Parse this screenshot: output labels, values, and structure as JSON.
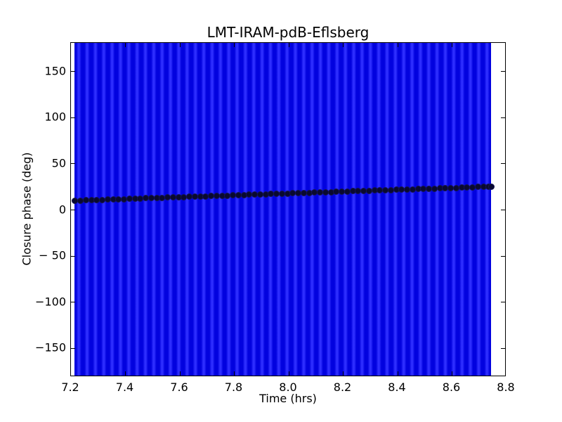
{
  "figure": {
    "background": "#ffffff"
  },
  "chart_data": {
    "type": "scatter",
    "title": "LMT-IRAM-pdB-Eflsberg",
    "xlabel": "Time (hrs)",
    "ylabel": "Closure phase (deg)",
    "xlim": [
      7.2,
      8.8
    ],
    "ylim": [
      -181,
      181
    ],
    "x_ticks": [
      7.2,
      7.4,
      7.6,
      7.8,
      8.0,
      8.2,
      8.4,
      8.6,
      8.8
    ],
    "x_tick_labels": [
      "7.2",
      "7.4",
      "7.6",
      "7.8",
      "8.0",
      "8.2",
      "8.4",
      "8.6",
      "8.8"
    ],
    "y_ticks": [
      150,
      100,
      50,
      0,
      -50,
      -100,
      -150
    ],
    "y_tick_labels": [
      "150",
      "100",
      "50",
      "0",
      "− 50",
      "−100",
      "−150"
    ],
    "grid": false,
    "legend": null,
    "error_band": {
      "description": "dense vertical error bars spanning the full y-range, rendered as alternating blue stripes",
      "x_start": 7.213,
      "x_end": 8.743,
      "stripe_period_hrs": 0.0306,
      "color_bright": "#2e2eff",
      "color_dark": "#0202df"
    },
    "series": [
      {
        "name": "closure phase",
        "marker": "circle",
        "marker_color": "#090930",
        "points": [
          [
            7.215,
            10.0
          ],
          [
            7.235,
            10.2
          ],
          [
            7.255,
            10.4
          ],
          [
            7.275,
            10.6
          ],
          [
            7.295,
            10.8
          ],
          [
            7.315,
            11.0
          ],
          [
            7.335,
            11.2
          ],
          [
            7.355,
            11.4
          ],
          [
            7.375,
            11.6
          ],
          [
            7.395,
            11.8
          ],
          [
            7.415,
            12.0
          ],
          [
            7.435,
            12.2
          ],
          [
            7.455,
            12.4
          ],
          [
            7.475,
            12.6
          ],
          [
            7.495,
            12.8
          ],
          [
            7.515,
            13.0
          ],
          [
            7.535,
            13.2
          ],
          [
            7.555,
            13.4
          ],
          [
            7.575,
            13.6
          ],
          [
            7.595,
            13.8
          ],
          [
            7.615,
            14.0
          ],
          [
            7.635,
            14.2
          ],
          [
            7.655,
            14.4
          ],
          [
            7.675,
            14.6
          ],
          [
            7.695,
            14.8
          ],
          [
            7.715,
            15.0
          ],
          [
            7.735,
            15.2
          ],
          [
            7.755,
            15.4
          ],
          [
            7.775,
            15.6
          ],
          [
            7.795,
            15.8
          ],
          [
            7.815,
            16.0
          ],
          [
            7.835,
            16.2
          ],
          [
            7.855,
            16.4
          ],
          [
            7.875,
            16.6
          ],
          [
            7.895,
            16.8
          ],
          [
            7.915,
            17.0
          ],
          [
            7.935,
            17.2
          ],
          [
            7.955,
            17.4
          ],
          [
            7.975,
            17.6
          ],
          [
            7.995,
            17.8
          ],
          [
            8.015,
            18.0
          ],
          [
            8.035,
            18.2
          ],
          [
            8.055,
            18.4
          ],
          [
            8.075,
            18.6
          ],
          [
            8.095,
            18.8
          ],
          [
            8.115,
            19.0
          ],
          [
            8.135,
            19.2
          ],
          [
            8.155,
            19.4
          ],
          [
            8.175,
            19.6
          ],
          [
            8.195,
            19.8
          ],
          [
            8.215,
            20.0
          ],
          [
            8.235,
            20.2
          ],
          [
            8.255,
            20.4
          ],
          [
            8.275,
            20.6
          ],
          [
            8.295,
            20.8
          ],
          [
            8.315,
            21.0
          ],
          [
            8.335,
            21.2
          ],
          [
            8.355,
            21.4
          ],
          [
            8.375,
            21.6
          ],
          [
            8.395,
            21.8
          ],
          [
            8.415,
            22.0
          ],
          [
            8.435,
            22.2
          ],
          [
            8.455,
            22.4
          ],
          [
            8.475,
            22.6
          ],
          [
            8.495,
            22.8
          ],
          [
            8.515,
            23.0
          ],
          [
            8.535,
            23.2
          ],
          [
            8.555,
            23.4
          ],
          [
            8.575,
            23.6
          ],
          [
            8.595,
            23.8
          ],
          [
            8.615,
            24.0
          ],
          [
            8.635,
            24.2
          ],
          [
            8.655,
            24.4
          ],
          [
            8.675,
            24.6
          ],
          [
            8.695,
            24.8
          ],
          [
            8.715,
            25.0
          ],
          [
            8.735,
            25.2
          ],
          [
            8.745,
            25.3
          ]
        ]
      }
    ]
  }
}
